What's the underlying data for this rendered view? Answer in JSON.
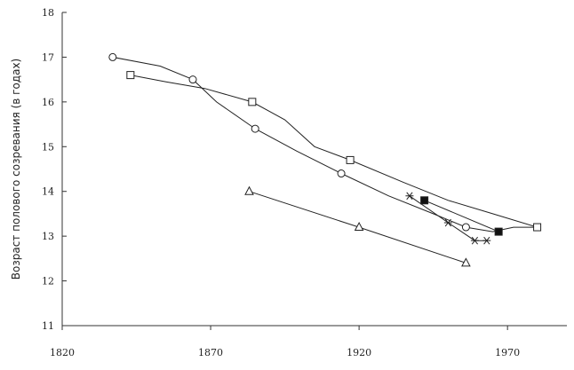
{
  "chart_data": {
    "type": "line",
    "title": "",
    "xlabel": "",
    "ylabel": "Возраст полового созревания (в годах)",
    "xlim": [
      1820,
      1990
    ],
    "ylim": [
      11,
      18
    ],
    "xticks": [
      1820,
      1870,
      1920,
      1970
    ],
    "yticks": [
      11,
      12,
      13,
      14,
      15,
      16,
      17,
      18
    ],
    "grid": false,
    "legend": "none",
    "series": [
      {
        "marker": "circle-open",
        "markers": [
          [
            1837,
            17.0
          ],
          [
            1864,
            16.5
          ],
          [
            1885,
            15.4
          ],
          [
            1914,
            14.4
          ],
          [
            1956,
            13.2
          ]
        ],
        "curve": [
          [
            1837,
            17.0
          ],
          [
            1853,
            16.8
          ],
          [
            1864,
            16.5
          ],
          [
            1872,
            16.0
          ],
          [
            1885,
            15.4
          ],
          [
            1899,
            14.9
          ],
          [
            1914,
            14.4
          ],
          [
            1930,
            13.9
          ],
          [
            1945,
            13.5
          ],
          [
            1956,
            13.2
          ],
          [
            1965,
            13.1
          ],
          [
            1972,
            13.2
          ],
          [
            1980,
            13.2
          ]
        ]
      },
      {
        "marker": "square-open",
        "markers": [
          [
            1843,
            16.6
          ],
          [
            1884,
            16.0
          ],
          [
            1917,
            14.7
          ],
          [
            1980,
            13.2
          ]
        ],
        "curve": [
          [
            1843,
            16.6
          ],
          [
            1855,
            16.45
          ],
          [
            1868,
            16.3
          ],
          [
            1884,
            16.0
          ],
          [
            1895,
            15.6
          ],
          [
            1905,
            15.0
          ],
          [
            1917,
            14.7
          ],
          [
            1935,
            14.2
          ],
          [
            1950,
            13.8
          ],
          [
            1965,
            13.5
          ],
          [
            1980,
            13.2
          ]
        ]
      },
      {
        "marker": "triangle-open",
        "markers": [
          [
            1883,
            14.0
          ],
          [
            1920,
            13.2
          ],
          [
            1956,
            12.4
          ]
        ],
        "curve": [
          [
            1883,
            14.0
          ],
          [
            1920,
            13.2
          ],
          [
            1956,
            12.4
          ]
        ]
      },
      {
        "marker": "asterisk",
        "markers": [
          [
            1937,
            13.9
          ],
          [
            1950,
            13.3
          ],
          [
            1959,
            12.9
          ],
          [
            1963,
            12.9
          ]
        ],
        "curve": [
          [
            1937,
            13.9
          ],
          [
            1950,
            13.3
          ],
          [
            1959,
            12.9
          ],
          [
            1963,
            12.9
          ]
        ]
      },
      {
        "marker": "square-filled",
        "markers": [
          [
            1942,
            13.8
          ],
          [
            1967,
            13.1
          ]
        ],
        "curve": [
          [
            1942,
            13.8
          ],
          [
            1967,
            13.1
          ]
        ]
      }
    ]
  }
}
